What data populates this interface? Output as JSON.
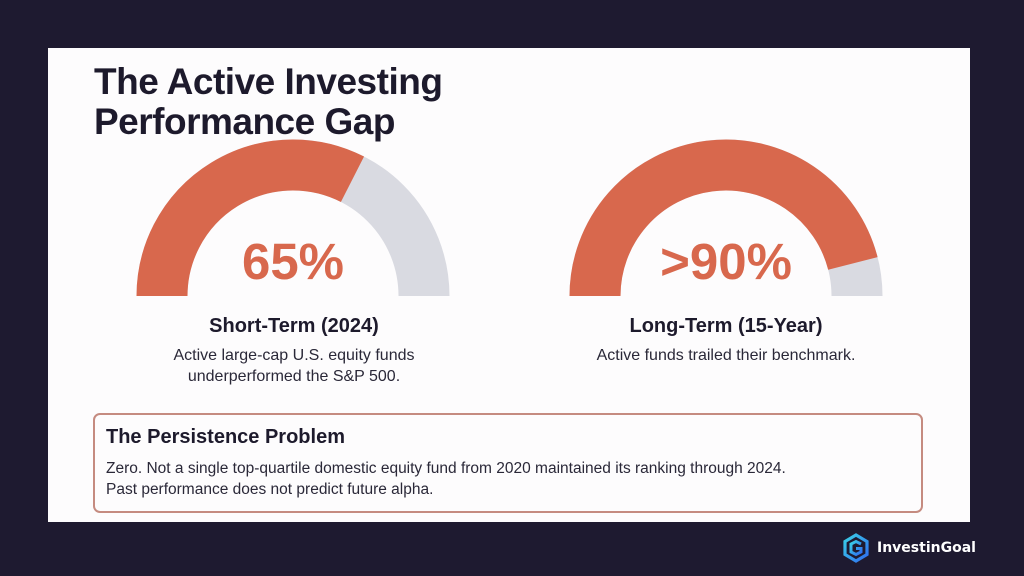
{
  "header": {
    "title_line1": "The Active Investing",
    "title_line2": "Performance Gap"
  },
  "colors": {
    "background": "#1e1a30",
    "card": "#fdfcfd",
    "accent": "#d8684d",
    "track": "#d9dae1",
    "text_dark": "#1d1a2c",
    "box_border": "#c58b80"
  },
  "gauges": [
    {
      "value_label": "65%",
      "label": "Short-Term (2024)",
      "desc_line1": "Active large-cap U.S. equity funds",
      "desc_line2": "underperformed the S&P 500."
    },
    {
      "value_label": ">90%",
      "label": "Long-Term (15-Year)",
      "desc_line1": "Active funds trailed their benchmark."
    }
  ],
  "persistence": {
    "title": "The Persistence Problem",
    "line1": "Zero. Not a single top-quartile domestic equity fund from 2020 maintained its ranking through 2024.",
    "line2": "Past performance does not predict future alpha."
  },
  "brand": {
    "name": "InvestinGoal",
    "icon": "investingoal-logo-icon"
  },
  "chart_data": {
    "type": "gauge",
    "title": "The Active Investing Performance Gap",
    "series": [
      {
        "name": "Short-Term (2024)",
        "value": 65,
        "display": "65%",
        "max": 100,
        "description": "Active large-cap U.S. equity funds underperformed the S&P 500."
      },
      {
        "name": "Long-Term (15-Year)",
        "value": 92,
        "display": ">90%",
        "max": 100,
        "description": "Active funds trailed their benchmark."
      }
    ],
    "annotations": [
      "The Persistence Problem: Zero. Not a single top-quartile domestic equity fund from 2020 maintained its ranking through 2024. Past performance does not predict future alpha."
    ]
  }
}
